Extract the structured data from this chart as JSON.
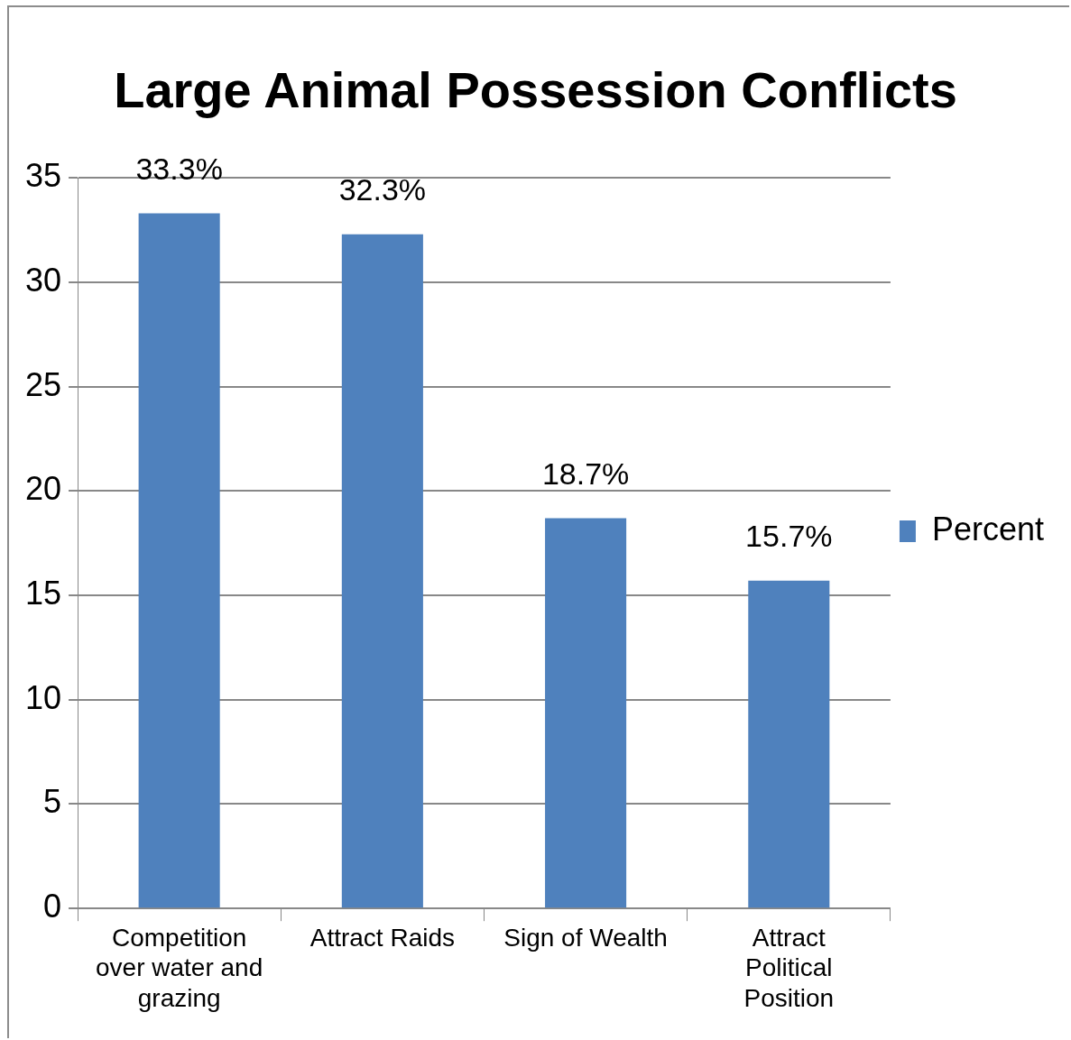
{
  "chart_data": {
    "type": "bar",
    "title": "Large Animal Possession Conflicts",
    "categories": [
      "Competition over water and grazing",
      "Attract Raids",
      "Sign of Wealth",
      "Attract Political Position"
    ],
    "series": [
      {
        "name": "Percent",
        "color": "#4f81bd",
        "values": [
          33.3,
          32.3,
          18.7,
          15.7
        ],
        "value_labels": [
          "33.3%",
          "32.3%",
          "18.7%",
          "15.7%"
        ]
      }
    ],
    "ylim": [
      0,
      35
    ],
    "yticks": [
      0,
      5,
      10,
      15,
      20,
      25,
      30,
      35
    ],
    "grid": "y",
    "legend": "right"
  }
}
